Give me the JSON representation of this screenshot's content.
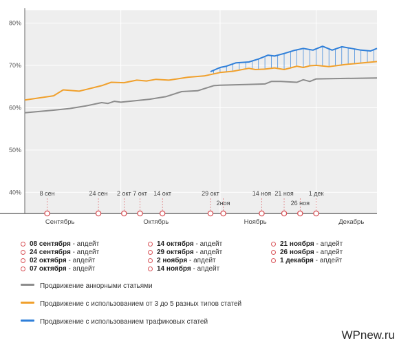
{
  "chart_data": {
    "type": "line",
    "x_domain": [
      "2015-09-01",
      "2015-12-20"
    ],
    "ylim": [
      35,
      83
    ],
    "yticks": [
      40,
      50,
      60,
      70,
      80
    ],
    "ytick_labels": [
      "40%",
      "50%",
      "60%",
      "70%",
      "80%"
    ],
    "months": [
      {
        "label": "Сентябрь",
        "date": "2015-09-12"
      },
      {
        "label": "Октябрь",
        "date": "2015-10-12"
      },
      {
        "label": "Ноябрь",
        "date": "2015-11-12"
      },
      {
        "label": "Декабрь",
        "date": "2015-12-12"
      }
    ],
    "updates": [
      {
        "label": "8 сен",
        "date": "2015-09-08"
      },
      {
        "label": "24 сен",
        "date": "2015-09-24"
      },
      {
        "label": "2 окт",
        "date": "2015-10-02"
      },
      {
        "label": "7 окт",
        "date": "2015-10-07"
      },
      {
        "label": "14 окт",
        "date": "2015-10-14"
      },
      {
        "label": "29 окт",
        "date": "2015-10-29"
      },
      {
        "label": "2ноя",
        "date": "2015-11-02"
      },
      {
        "label": "14 ноя",
        "date": "2015-11-14"
      },
      {
        "label": "21 ноя",
        "date": "2015-11-21"
      },
      {
        "label": "26 ноя",
        "date": "2015-11-26"
      },
      {
        "label": "1 дек",
        "date": "2015-12-01"
      }
    ],
    "series": [
      {
        "name": "Продвижение анкорными статьями",
        "color": "#8c8c8c",
        "x": [
          "2015-09-01",
          "2015-09-10",
          "2015-09-15",
          "2015-09-20",
          "2015-09-25",
          "2015-09-27",
          "2015-09-29",
          "2015-10-01",
          "2015-10-05",
          "2015-10-10",
          "2015-10-15",
          "2015-10-20",
          "2015-10-25",
          "2015-10-30",
          "2015-11-01",
          "2015-11-05",
          "2015-11-10",
          "2015-11-15",
          "2015-11-17",
          "2015-11-20",
          "2015-11-25",
          "2015-11-27",
          "2015-11-29",
          "2015-12-01",
          "2015-12-10",
          "2015-12-20"
        ],
        "values": [
          58.8,
          59.4,
          59.8,
          60.4,
          61.2,
          61.0,
          61.5,
          61.3,
          61.6,
          62.0,
          62.6,
          63.8,
          64.0,
          65.2,
          65.3,
          65.4,
          65.5,
          65.6,
          66.2,
          66.2,
          66.0,
          66.6,
          66.2,
          66.8,
          66.9,
          67.0
        ]
      },
      {
        "name": "Продвижение с использованием от 3 до 5 разных типов статей",
        "color": "#f0a02c",
        "x": [
          "2015-09-01",
          "2015-09-10",
          "2015-09-13",
          "2015-09-18",
          "2015-09-25",
          "2015-09-28",
          "2015-10-02",
          "2015-10-06",
          "2015-10-09",
          "2015-10-12",
          "2015-10-16",
          "2015-10-22",
          "2015-10-27",
          "2015-11-01",
          "2015-11-05",
          "2015-11-10",
          "2015-11-12",
          "2015-11-15",
          "2015-11-18",
          "2015-11-21",
          "2015-11-23",
          "2015-11-25",
          "2015-11-27",
          "2015-11-29",
          "2015-12-01",
          "2015-12-05",
          "2015-12-10",
          "2015-12-20"
        ],
        "values": [
          61.8,
          62.8,
          64.2,
          63.9,
          65.2,
          66.0,
          65.9,
          66.5,
          66.3,
          66.7,
          66.5,
          67.2,
          67.5,
          68.3,
          68.6,
          69.3,
          69.0,
          69.1,
          69.4,
          69.0,
          69.4,
          69.8,
          69.5,
          69.9,
          70.0,
          69.7,
          70.2,
          70.9
        ]
      },
      {
        "name": "Продвижение с использованием трафиковых статей",
        "color": "#2f7fd9",
        "x": [
          "2015-10-29",
          "2015-11-01",
          "2015-11-03",
          "2015-11-06",
          "2015-11-10",
          "2015-11-13",
          "2015-11-16",
          "2015-11-18",
          "2015-11-21",
          "2015-11-24",
          "2015-11-27",
          "2015-11-30",
          "2015-12-03",
          "2015-12-06",
          "2015-12-09",
          "2015-12-12",
          "2015-12-15",
          "2015-12-18",
          "2015-12-20"
        ],
        "values": [
          68.5,
          69.5,
          69.8,
          70.6,
          70.8,
          71.5,
          72.4,
          72.2,
          72.8,
          73.5,
          74.0,
          73.6,
          74.5,
          73.6,
          74.4,
          74.0,
          73.6,
          73.4,
          74.0
        ]
      }
    ]
  },
  "legend_dates": [
    {
      "date": "08 сентября",
      "suffix": " - апдейт"
    },
    {
      "date": "24 сентября",
      "suffix": " - апдейт"
    },
    {
      "date": "02 октября",
      "suffix": " - апдейт"
    },
    {
      "date": "07 октября",
      "suffix": " - апдейт"
    },
    {
      "date": "14 октября",
      "suffix": " - апдейт"
    },
    {
      "date": "29 октября",
      "suffix": " - апдейт"
    },
    {
      "date": "2 ноября",
      "suffix": " - апдейт"
    },
    {
      "date": "14 ноября",
      "suffix": " - апдейт"
    },
    {
      "date": "21 ноября",
      "suffix": " - апдейт"
    },
    {
      "date": "26 ноября",
      "suffix": " - апдейт"
    },
    {
      "date": "1 декабря",
      "suffix": " - апдейт"
    }
  ],
  "watermark": "WPnew.ru"
}
